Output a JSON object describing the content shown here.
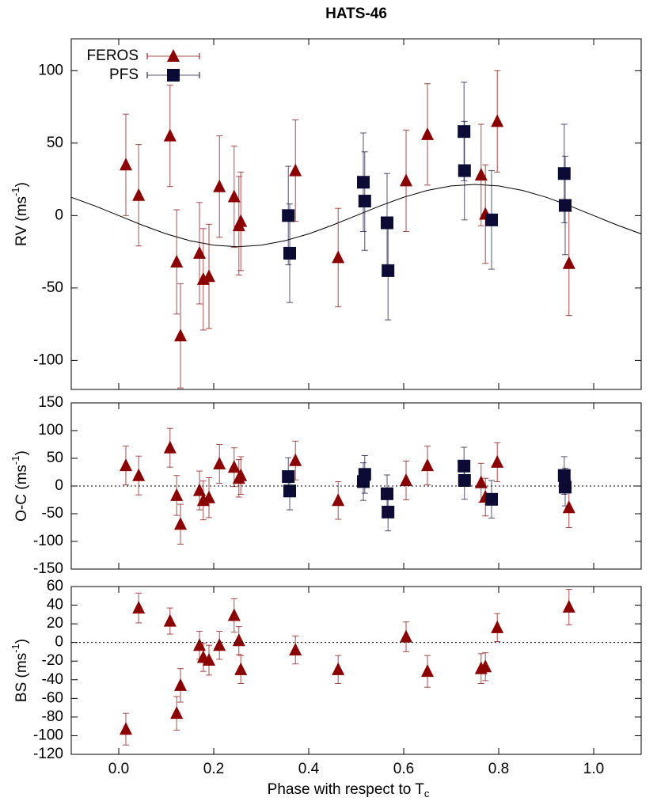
{
  "chart_data": [
    {
      "type": "scatter",
      "title": "HATS-46",
      "y_label": {
        "text": "RV (ms",
        "sup": "-1",
        "tail": ")"
      },
      "xlim": [
        -0.1,
        1.1
      ],
      "ylim": [
        -120,
        122
      ],
      "yticks": [
        -100,
        -50,
        0,
        50,
        100
      ],
      "legend": "top-left",
      "series": [
        {
          "name": "FEROS",
          "color": "#8b0000",
          "marker": "triangle",
          "x": [
            0.015,
            0.042,
            0.108,
            0.122,
            0.13,
            0.17,
            0.178,
            0.19,
            0.212,
            0.243,
            0.253,
            0.257,
            0.372,
            0.462,
            0.605,
            0.65,
            0.763,
            0.772,
            0.797,
            0.948
          ],
          "values": [
            35,
            14,
            55,
            -32,
            -83,
            -26,
            -44,
            -42,
            20,
            13,
            -7,
            -4,
            31,
            -29,
            24,
            56,
            28,
            1,
            65,
            -33
          ],
          "errors": [
            35,
            35,
            35,
            36,
            36,
            35,
            35,
            36,
            35,
            35,
            34,
            34,
            35,
            34,
            35,
            35,
            35,
            34,
            35,
            36
          ]
        },
        {
          "name": "PFS",
          "color": "#0b0b36",
          "marker": "square",
          "x": [
            0.357,
            0.36,
            0.515,
            0.518,
            0.565,
            0.567,
            0.727,
            0.728,
            0.785,
            0.938,
            0.94
          ],
          "values": [
            0,
            -26,
            23,
            10,
            -5,
            -38,
            58,
            31,
            -3,
            29,
            7
          ],
          "errors": [
            34,
            34,
            34,
            34,
            34,
            34,
            34,
            34,
            34,
            34,
            34
          ]
        }
      ],
      "model": {
        "color": "#000000",
        "x": [
          -0.1,
          -0.05,
          0,
          0.05,
          0.1,
          0.15,
          0.2,
          0.25,
          0.3,
          0.35,
          0.4,
          0.45,
          0.5,
          0.55,
          0.6,
          0.65,
          0.7,
          0.75,
          0.8,
          0.85,
          0.9,
          0.95,
          1.0,
          1.05,
          1.1
        ],
        "values": [
          12.64,
          6.64,
          0,
          -6.64,
          -12.64,
          -17.39,
          -20.45,
          -21.5,
          -20.45,
          -17.39,
          -12.64,
          -6.64,
          0,
          6.64,
          12.64,
          17.39,
          20.45,
          21.5,
          20.45,
          17.39,
          12.64,
          6.64,
          0,
          -6.64,
          -12.64
        ]
      }
    },
    {
      "type": "scatter",
      "y_label": {
        "text": "O-C (ms",
        "sup": "-1",
        "tail": ")"
      },
      "xlim": [
        -0.1,
        1.1
      ],
      "ylim": [
        -150,
        150
      ],
      "yticks": [
        -150,
        -100,
        -50,
        0,
        50,
        100,
        150
      ],
      "zero_line": true,
      "series": [
        {
          "name": "FEROS",
          "color": "#8b0000",
          "marker": "triangle",
          "x": [
            0.015,
            0.042,
            0.108,
            0.122,
            0.13,
            0.17,
            0.178,
            0.19,
            0.212,
            0.243,
            0.253,
            0.257,
            0.372,
            0.462,
            0.605,
            0.65,
            0.763,
            0.772,
            0.797,
            0.948
          ],
          "values": [
            37,
            19,
            69,
            -17,
            -69,
            -8,
            -26,
            -21,
            40,
            34,
            14,
            19,
            46,
            -26,
            10,
            37,
            6,
            -20,
            43,
            -39
          ],
          "errors": [
            35,
            35,
            35,
            36,
            36,
            35,
            35,
            36,
            35,
            35,
            34,
            34,
            35,
            34,
            35,
            35,
            35,
            34,
            35,
            36
          ]
        },
        {
          "name": "PFS",
          "color": "#0b0b36",
          "marker": "square",
          "x": [
            0.357,
            0.36,
            0.515,
            0.518,
            0.565,
            0.567,
            0.727,
            0.728,
            0.785,
            0.938,
            0.94
          ],
          "values": [
            17,
            -9,
            8,
            21,
            -14,
            -47,
            36,
            10,
            -24,
            19,
            -2
          ],
          "errors": [
            34,
            34,
            34,
            34,
            34,
            34,
            34,
            34,
            34,
            34,
            34
          ]
        }
      ]
    },
    {
      "type": "scatter",
      "y_label": {
        "text": "BS (ms",
        "sup": "-1",
        "tail": ")"
      },
      "x_label": {
        "text": "Phase with respect to T",
        "sub": "c"
      },
      "xlim": [
        -0.1,
        1.1
      ],
      "ylim": [
        -120,
        60
      ],
      "yticks": [
        -120,
        -100,
        -80,
        -60,
        -40,
        -20,
        0,
        20,
        40,
        60
      ],
      "xticks": [
        {
          "value": 0,
          "label": "0.0"
        },
        0.2,
        0.4,
        0.6,
        0.8,
        {
          "value": 1,
          "label": "1.0"
        }
      ],
      "zero_line": true,
      "series": [
        {
          "name": "FEROS",
          "color": "#8b0000",
          "marker": "triangle",
          "x": [
            0.015,
            0.042,
            0.108,
            0.122,
            0.13,
            0.17,
            0.178,
            0.19,
            0.212,
            0.243,
            0.253,
            0.257,
            0.372,
            0.462,
            0.605,
            0.65,
            0.763,
            0.772,
            0.797,
            0.948
          ],
          "values": [
            -93,
            37,
            23,
            -76,
            -46,
            -3,
            -16,
            -19,
            -3,
            29,
            2,
            -29,
            -8,
            -29,
            6,
            -31,
            -28,
            -26,
            16,
            38
          ],
          "errors": [
            17,
            16,
            14,
            18,
            18,
            15,
            15,
            16,
            15,
            18,
            15,
            15,
            15,
            15,
            16,
            17,
            16,
            15,
            15,
            19
          ]
        }
      ]
    }
  ]
}
